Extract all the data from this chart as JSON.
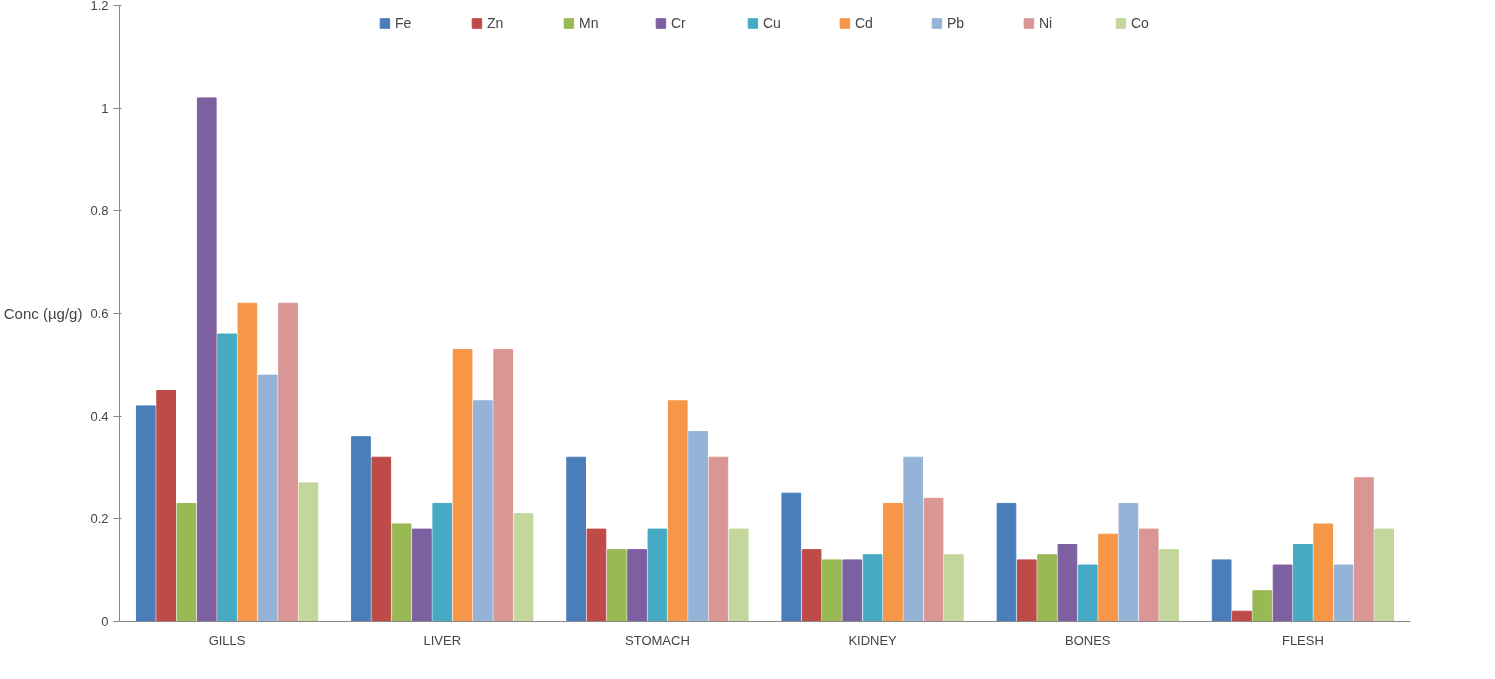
{
  "chart_data": {
    "type": "bar",
    "ylabel": "Conc (µg/g)",
    "categories": [
      "GILLS",
      "LIVER",
      "STOMACH",
      "KIDNEY",
      "BONES",
      "FLESH"
    ],
    "ylim": [
      0,
      1.2
    ],
    "yticks": [
      0,
      0.2,
      0.4,
      0.6,
      0.8,
      1,
      1.2
    ],
    "grid": false,
    "legend": "top",
    "series": [
      {
        "name": "Fe",
        "color": "#4a7ebb",
        "values": [
          0.42,
          0.36,
          0.32,
          0.25,
          0.23,
          0.12
        ]
      },
      {
        "name": "Zn",
        "color": "#be4b48",
        "values": [
          0.45,
          0.32,
          0.18,
          0.14,
          0.12,
          0.02
        ]
      },
      {
        "name": "Mn",
        "color": "#98b954",
        "values": [
          0.23,
          0.19,
          0.14,
          0.12,
          0.13,
          0.06
        ]
      },
      {
        "name": "Cr",
        "color": "#7d60a0",
        "values": [
          1.02,
          0.18,
          0.14,
          0.12,
          0.15,
          0.11
        ]
      },
      {
        "name": "Cu",
        "color": "#46aac5",
        "values": [
          0.56,
          0.23,
          0.18,
          0.13,
          0.11,
          0.15
        ]
      },
      {
        "name": "Cd",
        "color": "#f79646",
        "values": [
          0.62,
          0.53,
          0.43,
          0.23,
          0.17,
          0.19
        ]
      },
      {
        "name": "Pb",
        "color": "#95b3d7",
        "values": [
          0.48,
          0.43,
          0.37,
          0.32,
          0.23,
          0.11
        ]
      },
      {
        "name": "Ni",
        "color": "#d99694",
        "values": [
          0.62,
          0.53,
          0.32,
          0.24,
          0.18,
          0.28
        ]
      },
      {
        "name": "Co",
        "color": "#c3d69b",
        "values": [
          0.27,
          0.21,
          0.18,
          0.13,
          0.14,
          0.18
        ]
      }
    ]
  }
}
